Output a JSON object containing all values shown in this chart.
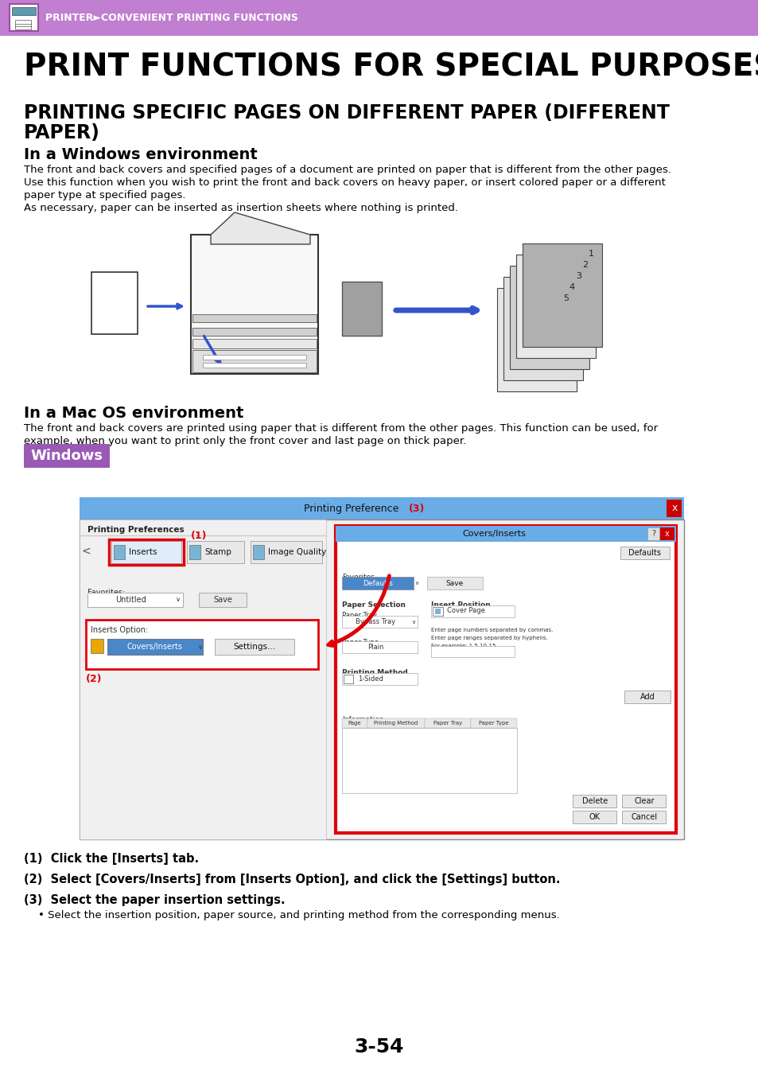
{
  "header_bg_color": "#c07fd0",
  "header_text": "PRINTER►CONVENIENT PRINTING FUNCTIONS",
  "header_text_color": "#ffffff",
  "main_title": "PRINT FUNCTIONS FOR SPECIAL PURPOSES",
  "section_title": "PRINTING SPECIFIC PAGES ON DIFFERENT PAPER (DIFFERENT\nPAPER)",
  "subsection1": "In a Windows environment",
  "body_text1_lines": [
    "The front and back covers and specified pages of a document are printed on paper that is different from the other pages.",
    "Use this function when you wish to print the front and back covers on heavy paper, or insert colored paper or a different",
    "paper type at specified pages.",
    "As necessary, paper can be inserted as insertion sheets where nothing is printed."
  ],
  "subsection2": "In a Mac OS environment",
  "body_text2_lines": [
    "The front and back covers are printed using paper that is different from the other pages. This function can be used, for",
    "example, when you want to print only the front cover and last page on thick paper."
  ],
  "windows_label": "Windows",
  "windows_label_bg": "#9b59b6",
  "windows_label_text_color": "#ffffff",
  "step1": "(1)  Click the [Inserts] tab.",
  "step2": "(2)  Select [Covers/Inserts] from [Inserts Option], and click the [Settings] button.",
  "step3": "(3)  Select the paper insertion settings.",
  "step3_sub": "• Select the insertion position, paper source, and printing method from the corresponding menus.",
  "page_number": "3-54",
  "bg_color": "#ffffff",
  "text_color": "#000000",
  "accent_red": "#e0000a",
  "dialog_blue": "#6aace6",
  "dialog_blue_dark": "#4a86c8"
}
